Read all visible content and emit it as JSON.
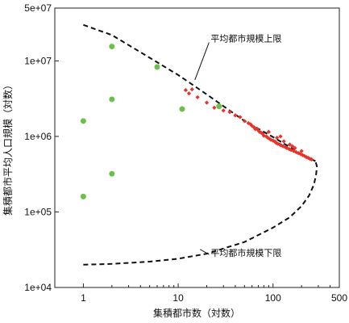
{
  "chart_data": {
    "type": "scatter",
    "title": "",
    "xlabel": "集積都市数（対数）",
    "ylabel": "集積都市平均人口規模（対数）",
    "x_scale": "log",
    "y_scale": "log",
    "xlim": [
      0.5,
      500
    ],
    "ylim": [
      10000,
      50000000
    ],
    "x_ticks": [
      {
        "value": 1,
        "label": "1"
      },
      {
        "value": 10,
        "label": "10"
      },
      {
        "value": 100,
        "label": "100"
      },
      {
        "value": 500,
        "label": "500"
      }
    ],
    "y_ticks": [
      {
        "value": 10000,
        "label": "1e+04"
      },
      {
        "value": 100000,
        "label": "1e+05"
      },
      {
        "value": 1000000,
        "label": "1e+06"
      },
      {
        "value": 10000000,
        "label": "1e+07"
      },
      {
        "value": 50000000,
        "label": "5e+07"
      }
    ],
    "colors": {
      "green_points": "#6cc04a",
      "red_points": "#e8322a",
      "bound_lines": "#111111",
      "axis": "#222222"
    },
    "series": [
      {
        "marker": "circle",
        "color": "#6cc04a",
        "points": [
          [
            1,
            1600000
          ],
          [
            1,
            160000
          ],
          [
            2,
            15500000
          ],
          [
            2,
            3100000
          ],
          [
            2,
            320000
          ],
          [
            6,
            8300000
          ],
          [
            11,
            2300000
          ],
          [
            27,
            2500000
          ]
        ]
      },
      {
        "marker": "diamond",
        "color": "#e8322a",
        "points": [
          [
            12,
            4100000
          ],
          [
            13,
            3700000
          ],
          [
            14,
            4200000
          ],
          [
            16,
            3300000
          ],
          [
            20,
            2800000
          ],
          [
            24,
            2400000
          ],
          [
            30,
            2200000
          ],
          [
            35,
            2100000
          ],
          [
            40,
            1900000
          ],
          [
            45,
            1800000
          ],
          [
            50,
            1600000
          ],
          [
            55,
            1500000
          ],
          [
            58,
            1450000
          ],
          [
            60,
            1380000
          ],
          [
            63,
            1320000
          ],
          [
            65,
            1250000
          ],
          [
            68,
            1260000
          ],
          [
            70,
            1200000
          ],
          [
            72,
            1150000
          ],
          [
            75,
            1120000
          ],
          [
            78,
            1080000
          ],
          [
            80,
            1020000
          ],
          [
            85,
            1000000
          ],
          [
            88,
            960000
          ],
          [
            92,
            930000
          ],
          [
            95,
            900000
          ],
          [
            100,
            880000
          ],
          [
            105,
            850000
          ],
          [
            108,
            820000
          ],
          [
            112,
            800000
          ],
          [
            118,
            780000
          ],
          [
            122,
            760000
          ],
          [
            128,
            740000
          ],
          [
            135,
            720000
          ],
          [
            140,
            700000
          ],
          [
            148,
            680000
          ],
          [
            155,
            660000
          ],
          [
            165,
            640000
          ],
          [
            175,
            620000
          ],
          [
            185,
            600000
          ],
          [
            195,
            585000
          ],
          [
            205,
            565000
          ],
          [
            215,
            550000
          ],
          [
            225,
            530000
          ],
          [
            235,
            520000
          ],
          [
            245,
            505000
          ],
          [
            255,
            495000
          ],
          [
            90,
            1150000
          ],
          [
            110,
            960000
          ],
          [
            130,
            860000
          ],
          [
            150,
            780000
          ],
          [
            170,
            700000
          ],
          [
            120,
            1000000
          ],
          [
            160,
            740000
          ],
          [
            200,
            640000
          ]
        ]
      }
    ],
    "bounds": [
      {
        "name": "平均都市規模上限",
        "style": "dashed",
        "points": [
          [
            1,
            30000000
          ],
          [
            2,
            22000000
          ],
          [
            5,
            11000000
          ],
          [
            10,
            6500000
          ],
          [
            20,
            3600000
          ],
          [
            50,
            1600000
          ],
          [
            100,
            980000
          ],
          [
            200,
            580000
          ],
          [
            280,
            470000
          ]
        ]
      },
      {
        "name": "平均都市規模下限",
        "style": "dashed",
        "points": [
          [
            1,
            20000
          ],
          [
            2,
            20500
          ],
          [
            5,
            22000
          ],
          [
            10,
            24000
          ],
          [
            20,
            28000
          ],
          [
            50,
            40000
          ],
          [
            100,
            62000
          ],
          [
            150,
            85000
          ],
          [
            200,
            120000
          ],
          [
            240,
            165000
          ],
          [
            270,
            230000
          ],
          [
            285,
            320000
          ],
          [
            290,
            400000
          ],
          [
            280,
            470000
          ]
        ]
      }
    ],
    "annotations": [
      {
        "text": "平均都市規模上限",
        "x": 22,
        "y": 18000000
      },
      {
        "text": "平均都市規模下限",
        "x": 22,
        "y": 26000
      }
    ]
  }
}
